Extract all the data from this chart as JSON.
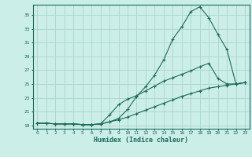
{
  "xlabel": "Humidex (Indice chaleur)",
  "bg_color": "#cceee8",
  "grid_color": "#aad4ce",
  "line_color": "#1a6b5a",
  "spine_color": "#1a6b5a",
  "xlim": [
    -0.5,
    23.5
  ],
  "ylim": [
    18.5,
    36.5
  ],
  "xticks": [
    0,
    1,
    2,
    3,
    4,
    5,
    6,
    7,
    8,
    9,
    10,
    11,
    12,
    13,
    14,
    15,
    16,
    17,
    18,
    19,
    20,
    21,
    22,
    23
  ],
  "yticks": [
    19,
    21,
    23,
    25,
    27,
    29,
    31,
    33,
    35
  ],
  "line1_y": [
    19.3,
    19.3,
    19.2,
    19.2,
    19.2,
    19.1,
    19.1,
    19.2,
    19.5,
    20.0,
    21.3,
    23.2,
    24.6,
    26.3,
    28.5,
    31.5,
    33.3,
    35.5,
    36.2,
    34.6,
    32.2,
    30.0,
    25.0,
    25.2
  ],
  "line2_y": [
    19.3,
    19.3,
    19.2,
    19.2,
    19.2,
    19.1,
    19.1,
    19.2,
    20.5,
    22.0,
    22.8,
    23.3,
    24.0,
    24.7,
    25.4,
    25.9,
    26.4,
    26.9,
    27.5,
    28.0,
    25.8,
    25.0,
    25.0,
    25.2
  ],
  "line3_y": [
    19.3,
    19.3,
    19.2,
    19.2,
    19.2,
    19.1,
    19.1,
    19.2,
    19.5,
    19.8,
    20.2,
    20.7,
    21.2,
    21.7,
    22.2,
    22.7,
    23.2,
    23.6,
    24.0,
    24.4,
    24.6,
    24.8,
    25.0,
    25.2
  ]
}
